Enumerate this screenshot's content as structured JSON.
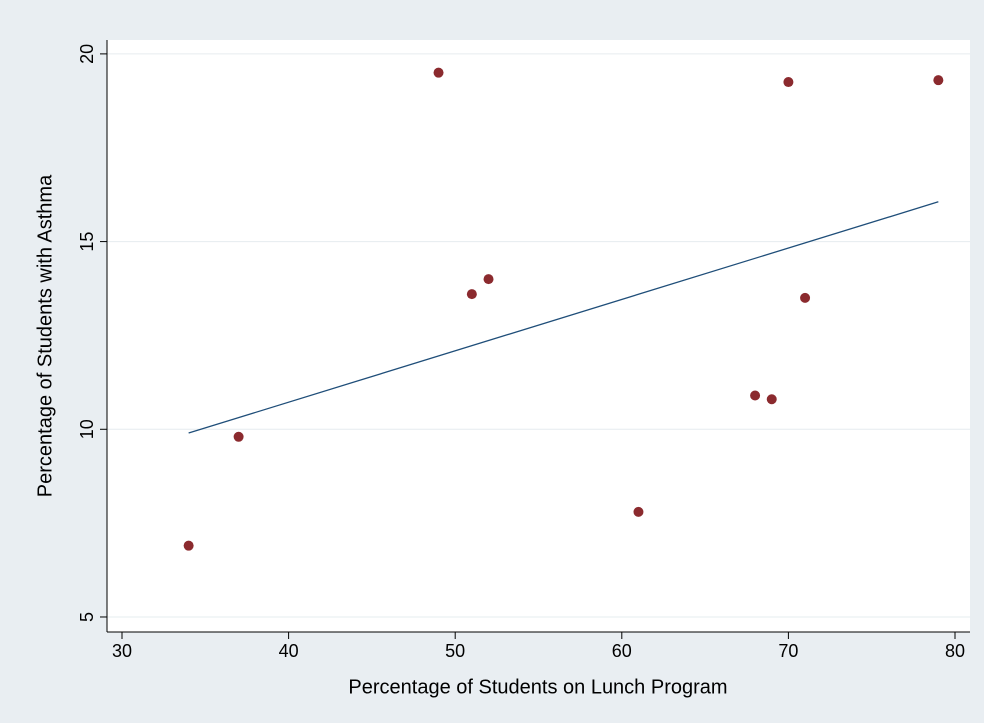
{
  "chart_data": {
    "type": "scatter",
    "x_label": "Percentage of Students on Lunch Program",
    "y_label": "Percentage of Students with Asthma",
    "series": [
      {
        "type": "scatter",
        "color": "#8b2a2e",
        "x": [
          34,
          37,
          49,
          51,
          52,
          61,
          68,
          69,
          70,
          71,
          79
        ],
        "values": [
          6.9,
          9.8,
          19.5,
          13.6,
          14.0,
          7.8,
          10.9,
          10.8,
          19.25,
          13.5,
          19.3
        ]
      },
      {
        "type": "line",
        "color": "#1f4e79",
        "x": [
          34,
          79
        ],
        "values": [
          9.9,
          16.06
        ]
      }
    ],
    "xlim": [
      29.1,
      80.9
    ],
    "ylim": [
      4.6,
      20.37
    ],
    "xticks": [
      30,
      40,
      50,
      60,
      70,
      80
    ],
    "yticks": [
      5,
      10,
      15,
      20
    ],
    "grid": true
  }
}
